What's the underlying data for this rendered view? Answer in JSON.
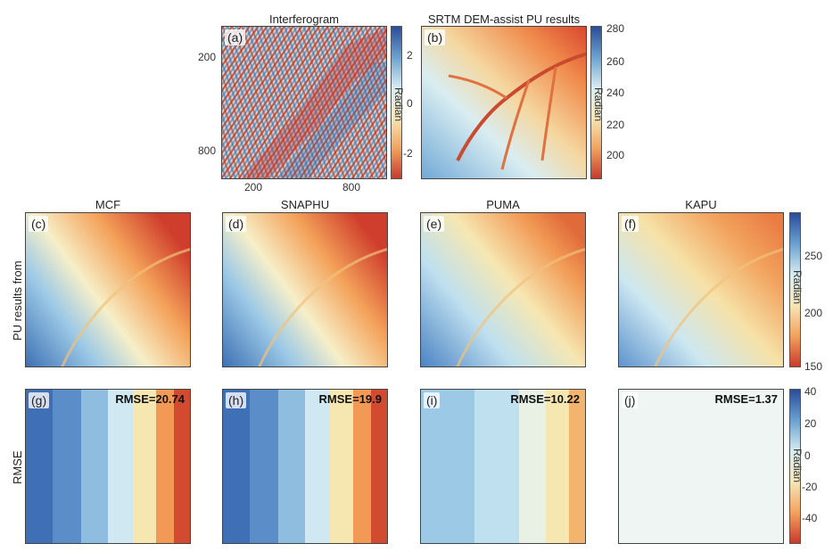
{
  "titles": {
    "interferogram": "Interferogram",
    "srtm": "SRTM DEM-assist PU results",
    "mcf": "MCF",
    "snaphu": "SNAPHU",
    "puma": "PUMA",
    "kapu": "KAPU"
  },
  "panel_labels": [
    "(a)",
    "(b)",
    "(c)",
    "(d)",
    "(e)",
    "(f)",
    "(g)",
    "(h)",
    "(i)",
    "(j)"
  ],
  "row_labels": {
    "pu": "PU results from",
    "rmse": "RMSE"
  },
  "rmse_values": {
    "mcf": "RMSE=20.74",
    "snaphu": "RMSE=19.9",
    "puma": "RMSE=10.22",
    "kapu": "RMSE=1.37"
  },
  "axes_a": {
    "y_ticks": [
      "200",
      "800"
    ],
    "x_ticks": [
      "200",
      "800"
    ]
  },
  "colorbars": {
    "a": {
      "label": "Radian",
      "ticks": [
        "2",
        "0",
        "-2"
      ]
    },
    "b": {
      "label": "Radian",
      "ticks": [
        "280",
        "260",
        "240",
        "220",
        "200"
      ]
    },
    "pu": {
      "label": "Radian",
      "ticks": [
        "250",
        "200",
        "150"
      ]
    },
    "rmse": {
      "label": "Radian",
      "ticks": [
        "40",
        "20",
        "0",
        "-20",
        "-40"
      ]
    }
  },
  "colors": {
    "blue_dark": "#2b4c9a",
    "blue": "#4a7fc0",
    "light_blue": "#bfe0ef",
    "cream": "#f6efc8",
    "orange": "#f4a25a",
    "red": "#c73a2c"
  }
}
